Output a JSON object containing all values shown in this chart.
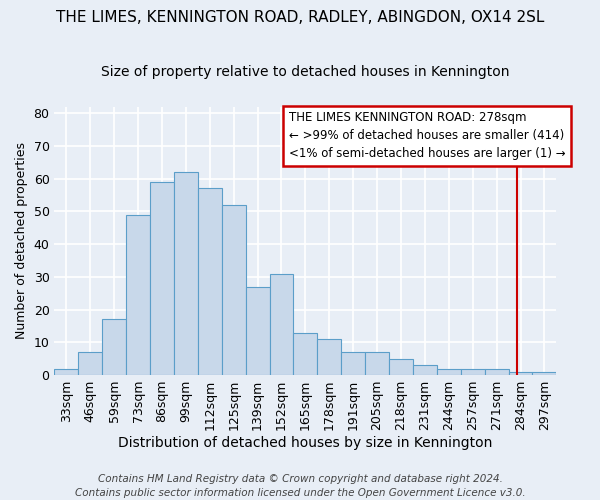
{
  "title1": "THE LIMES, KENNINGTON ROAD, RADLEY, ABINGDON, OX14 2SL",
  "title2": "Size of property relative to detached houses in Kennington",
  "xlabel": "Distribution of detached houses by size in Kennington",
  "ylabel": "Number of detached properties",
  "footer_line1": "Contains HM Land Registry data © Crown copyright and database right 2024.",
  "footer_line2": "Contains public sector information licensed under the Open Government Licence v3.0.",
  "bar_labels": [
    "33sqm",
    "46sqm",
    "59sqm",
    "73sqm",
    "86sqm",
    "99sqm",
    "112sqm",
    "125sqm",
    "139sqm",
    "152sqm",
    "165sqm",
    "178sqm",
    "191sqm",
    "205sqm",
    "218sqm",
    "231sqm",
    "244sqm",
    "257sqm",
    "271sqm",
    "284sqm",
    "297sqm"
  ],
  "bar_values": [
    2,
    7,
    17,
    49,
    59,
    62,
    57,
    52,
    27,
    31,
    13,
    11,
    7,
    7,
    5,
    3,
    2,
    2,
    2,
    1,
    1
  ],
  "bar_color": "#c8d8ea",
  "bar_edge_color": "#5b9ec9",
  "bg_color": "#e8eef6",
  "grid_color": "#ffffff",
  "annotation_text_line1": "THE LIMES KENNINGTON ROAD: 278sqm",
  "annotation_text_line2": "← >99% of detached houses are smaller (414)",
  "annotation_text_line3": "<1% of semi-detached houses are larger (1) →",
  "annotation_box_color": "#ffffff",
  "annotation_border_color": "#cc0000",
  "vline_color": "#cc0000",
  "vline_x_index": 18.85,
  "ylim": [
    0,
    82
  ],
  "yticks": [
    0,
    10,
    20,
    30,
    40,
    50,
    60,
    70,
    80
  ],
  "title1_fontsize": 11,
  "title2_fontsize": 10,
  "xlabel_fontsize": 10,
  "ylabel_fontsize": 9,
  "tick_fontsize": 9,
  "annot_fontsize": 8.5,
  "footer_fontsize": 7.5
}
